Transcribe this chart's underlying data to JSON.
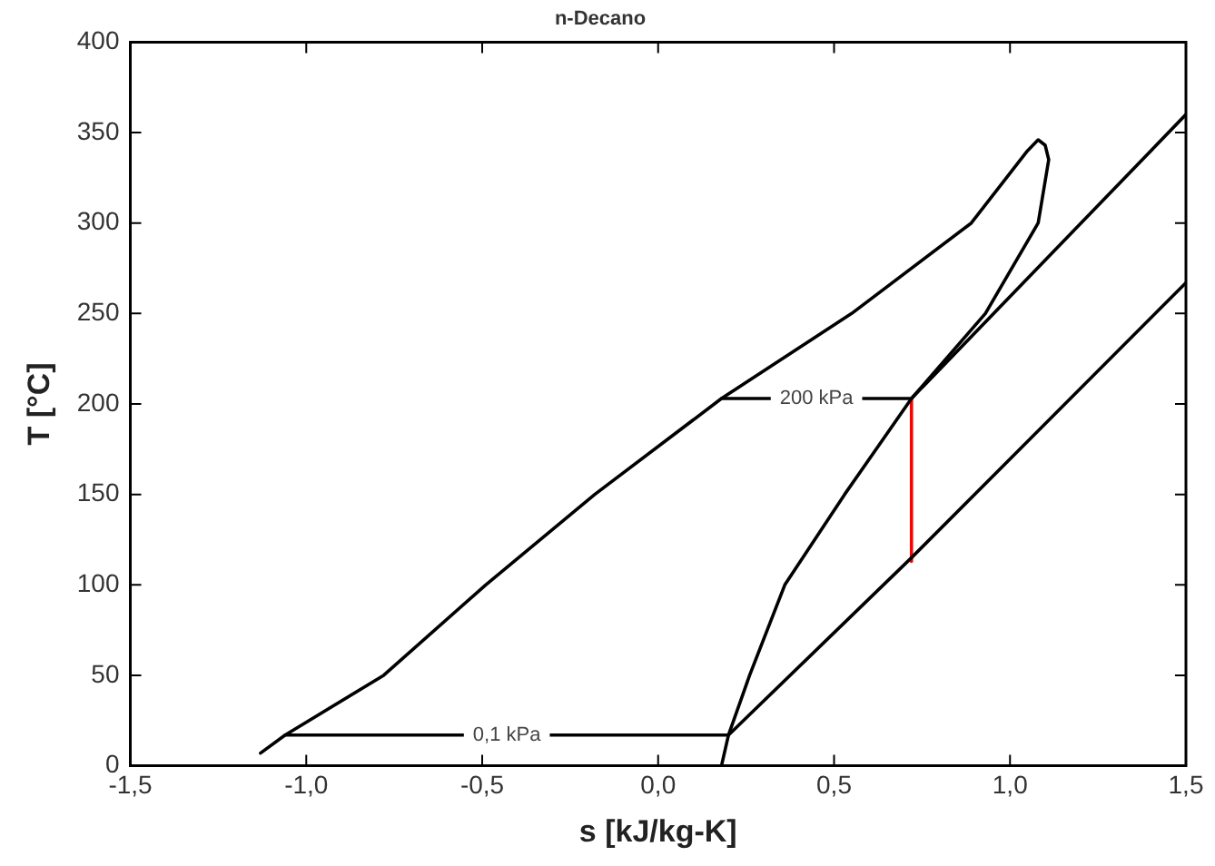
{
  "chart_data": {
    "type": "line",
    "title": "n-Decano",
    "xlabel": "s [kJ/kg-K]",
    "ylabel": "T [°C]",
    "xlim": [
      -1.5,
      1.5
    ],
    "xticks": [
      {
        "value": -1.5,
        "label": "-1,5"
      },
      {
        "value": -1,
        "label": "-1,0"
      },
      {
        "value": -0.5,
        "label": "-0,5"
      },
      {
        "value": 0,
        "label": "0,0"
      },
      {
        "value": 0.5,
        "label": "0,5"
      },
      {
        "value": 1,
        "label": "1,0"
      },
      {
        "value": 1.5,
        "label": "1,5"
      }
    ],
    "ylim": [
      0,
      400
    ],
    "yticks": [
      0,
      50,
      100,
      150,
      200,
      250,
      300,
      350,
      400
    ],
    "grid": false,
    "legend": false,
    "marker": "none",
    "line_style": "solid",
    "series": [
      {
        "color": "#000000",
        "x": [
          -1.13,
          -1.06,
          -0.78,
          -0.49,
          -0.18,
          0.18,
          0.55,
          0.89,
          1.05,
          1.08,
          1.1,
          1.11,
          1.08,
          0.93,
          0.72,
          0.53,
          0.36,
          0.26,
          0.2,
          0.18
        ],
        "values": [
          7,
          17,
          50,
          100,
          150,
          203,
          250,
          300,
          340,
          346,
          343,
          335,
          300,
          250,
          203,
          150,
          100,
          50,
          17,
          0
        ]
      },
      {
        "color": "#000000",
        "x": [
          0.18,
          0.72,
          1.5
        ],
        "values": [
          203,
          203,
          360
        ]
      },
      {
        "color": "#000000",
        "x": [
          -1.06,
          0.2,
          0.72,
          1.5
        ],
        "values": [
          17,
          17,
          115,
          267
        ]
      },
      {
        "color": "#ff0000",
        "x": [
          0.72,
          0.72
        ],
        "values": [
          203,
          113
        ]
      }
    ],
    "annotations": [
      {
        "text": "200 kPa",
        "x": 0.45,
        "y": 203
      },
      {
        "text": "0,1 kPa",
        "x": -0.43,
        "y": 17
      }
    ]
  }
}
